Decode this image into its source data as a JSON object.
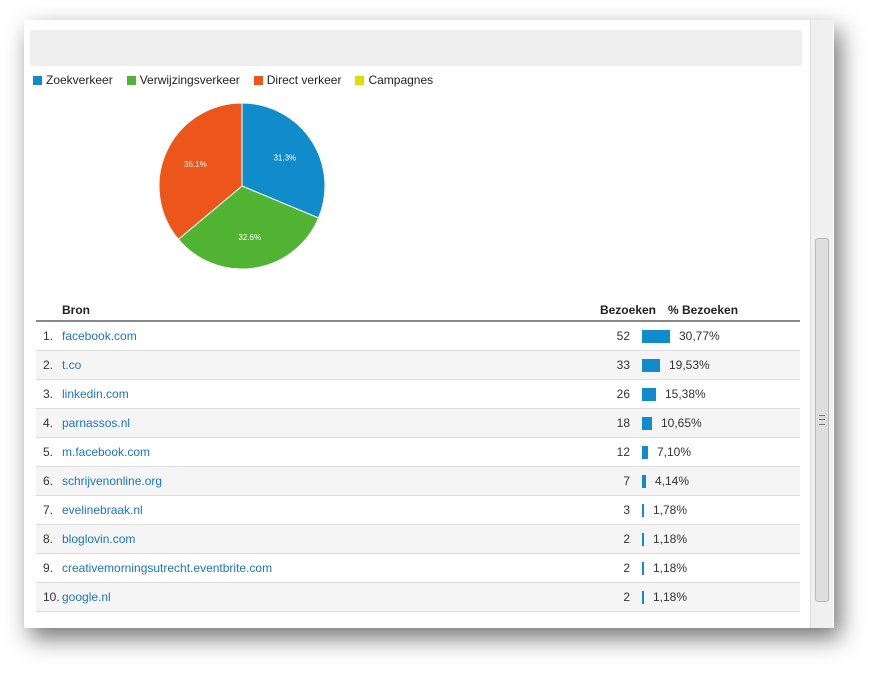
{
  "legend": {
    "items": [
      {
        "label": "Zoekverkeer",
        "color": "#0f8cc9"
      },
      {
        "label": "Verwijzingsverkeer",
        "color": "#50b432"
      },
      {
        "label": "Direct verkeer",
        "color": "#ed561b"
      },
      {
        "label": "Campagnes",
        "color": "#dddf00"
      }
    ]
  },
  "chart_data": {
    "type": "pie",
    "slices": [
      {
        "name": "Zoekverkeer",
        "value": 31.3,
        "label": "31.3%",
        "color": "#0f8cc9"
      },
      {
        "name": "Verwijzingsverkeer",
        "value": 32.6,
        "label": "32.6%",
        "color": "#50b432"
      },
      {
        "name": "Direct verkeer",
        "value": 36.1,
        "label": "36.1%",
        "color": "#ed561b"
      }
    ]
  },
  "table": {
    "headers": {
      "source": "Bron",
      "visits": "Bezoeken",
      "pct": "% Bezoeken"
    },
    "rows": [
      {
        "index": "1.",
        "source": "facebook.com",
        "visits": "52",
        "pct": "30,77%",
        "share": 30.77
      },
      {
        "index": "2.",
        "source": "t.co",
        "visits": "33",
        "pct": "19,53%",
        "share": 19.53
      },
      {
        "index": "3.",
        "source": "linkedin.com",
        "visits": "26",
        "pct": "15,38%",
        "share": 15.38
      },
      {
        "index": "4.",
        "source": "parnassos.nl",
        "visits": "18",
        "pct": "10,65%",
        "share": 10.65
      },
      {
        "index": "5.",
        "source": "m.facebook.com",
        "visits": "12",
        "pct": "7,10%",
        "share": 7.1
      },
      {
        "index": "6.",
        "source": "schrijvenonline.org",
        "visits": "7",
        "pct": "4,14%",
        "share": 4.14
      },
      {
        "index": "7.",
        "source": "evelinebraak.nl",
        "visits": "3",
        "pct": "1,78%",
        "share": 1.78
      },
      {
        "index": "8.",
        "source": "bloglovin.com",
        "visits": "2",
        "pct": "1,18%",
        "share": 1.18
      },
      {
        "index": "9.",
        "source": "creativemorningsutrecht.eventbrite.com",
        "visits": "2",
        "pct": "1,18%",
        "share": 1.18
      },
      {
        "index": "10.",
        "source": "google.nl",
        "visits": "2",
        "pct": "1,18%",
        "share": 1.18
      }
    ]
  }
}
